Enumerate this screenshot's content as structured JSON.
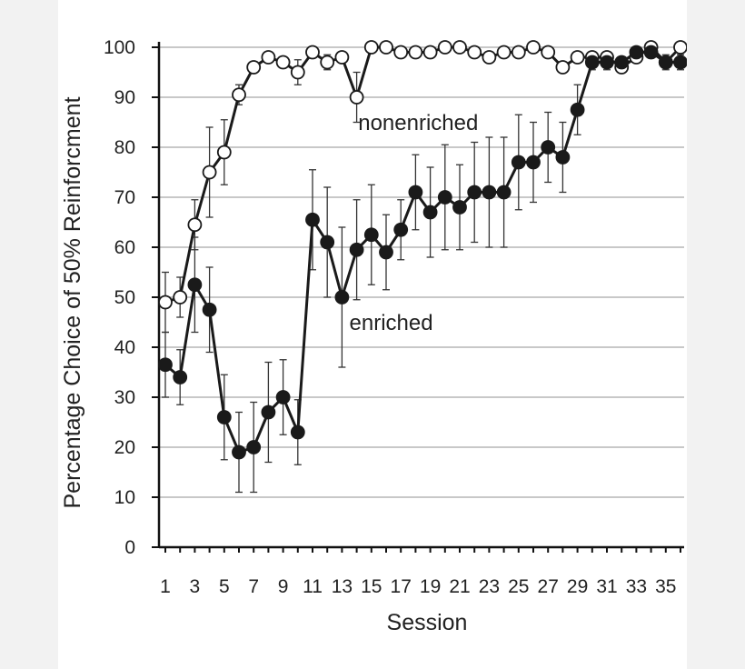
{
  "chart_data": {
    "type": "line",
    "title": "",
    "xlabel": "Session",
    "ylabel": "Percentage Choice of 50% Reinforcment",
    "xlim": [
      1,
      36
    ],
    "ylim": [
      0,
      100
    ],
    "y_ticks": [
      0,
      10,
      20,
      30,
      40,
      50,
      60,
      70,
      80,
      90,
      100
    ],
    "x_tick_labels": [
      1,
      3,
      5,
      7,
      9,
      11,
      13,
      15,
      17,
      19,
      21,
      23,
      25,
      27,
      29,
      31,
      33,
      35
    ],
    "grid": "horizontal",
    "legend": "none",
    "x": [
      1,
      2,
      3,
      4,
      5,
      6,
      7,
      8,
      9,
      10,
      11,
      12,
      13,
      14,
      15,
      16,
      17,
      18,
      19,
      20,
      21,
      22,
      23,
      24,
      25,
      26,
      27,
      28,
      29,
      30,
      31,
      32,
      33,
      34,
      35,
      36
    ],
    "series": [
      {
        "name": "nonenriched",
        "marker": "open-circle",
        "color": "#ffffff",
        "values": [
          49,
          50,
          64.5,
          75,
          79,
          90.5,
          96,
          98,
          97,
          95,
          99,
          97,
          98,
          90,
          100,
          100,
          99,
          99,
          99,
          100,
          100,
          99,
          98,
          99,
          99,
          100,
          99,
          96,
          98,
          98,
          98,
          96,
          98,
          100,
          97,
          100
        ],
        "err": [
          6,
          4,
          5,
          9,
          6.5,
          2,
          1,
          1,
          1,
          2.5,
          1,
          1.5,
          1,
          5,
          0,
          0,
          0,
          0,
          0,
          0,
          0,
          0,
          0,
          0,
          0,
          0,
          0,
          0,
          0,
          0,
          0,
          1,
          0,
          0,
          0,
          0
        ]
      },
      {
        "name": "enriched",
        "marker": "filled-circle",
        "color": "#1a1a1a",
        "values": [
          36.5,
          34,
          52.5,
          47.5,
          26,
          19,
          20,
          27,
          30,
          23,
          65.5,
          61,
          50,
          59.5,
          62.5,
          59,
          63.5,
          71,
          67,
          70,
          68,
          71,
          71,
          71,
          77,
          77,
          80,
          78,
          87.5,
          97,
          97,
          97,
          99,
          99,
          97,
          97
        ],
        "err": [
          6.5,
          5.5,
          9.5,
          8.5,
          8.5,
          8,
          9,
          10,
          7.5,
          6.5,
          10,
          11,
          14,
          10,
          10,
          7.5,
          6,
          7.5,
          9,
          10.5,
          8.5,
          10,
          11,
          11,
          9.5,
          8,
          7,
          7,
          5,
          1.5,
          1.5,
          1,
          1,
          1,
          1.5,
          1.5
        ]
      }
    ],
    "annotations": [
      {
        "text": "nonenriched",
        "x": 14.1,
        "y": 83.5
      },
      {
        "text": "enriched",
        "x": 13.5,
        "y": 43.5
      }
    ]
  }
}
